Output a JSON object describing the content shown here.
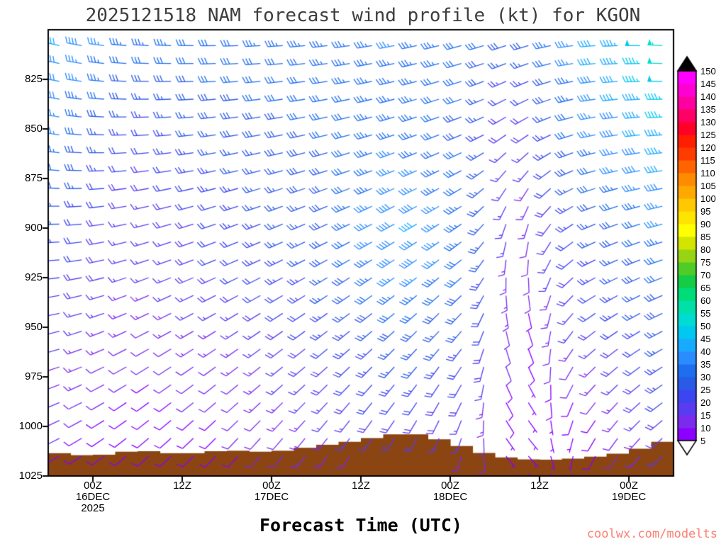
{
  "page": {
    "background": "#ffffff",
    "title_color": "#3d3d3d",
    "watermark": "coolwx.com/modelts",
    "watermark_color": "#fa8072"
  },
  "chart_data": {
    "type": "wind-barb-time-height",
    "title": "2025121518 NAM forecast wind profile (kt) for KGON",
    "units": "kt",
    "x_axis": {
      "title": "Forecast Time (UTC)",
      "range_hours": [
        0,
        84
      ],
      "time_step_hours": 3,
      "ticks": [
        {
          "hour": 6,
          "label": "00Z",
          "date": "16DEC",
          "year": "2025"
        },
        {
          "hour": 18,
          "label": "12Z"
        },
        {
          "hour": 30,
          "label": "00Z",
          "date": "17DEC"
        },
        {
          "hour": 42,
          "label": "12Z"
        },
        {
          "hour": 54,
          "label": "00Z",
          "date": "18DEC"
        },
        {
          "hour": 66,
          "label": "12Z"
        },
        {
          "hour": 78,
          "label": "00Z",
          "date": "19DEC"
        }
      ]
    },
    "y_axis": {
      "units": "hPa",
      "range": [
        800,
        1025
      ],
      "ticks": [
        825,
        850,
        875,
        900,
        925,
        950,
        975,
        1000,
        1025
      ]
    },
    "colorbar": {
      "values": [
        5,
        10,
        15,
        20,
        25,
        30,
        35,
        40,
        45,
        50,
        55,
        60,
        65,
        70,
        75,
        80,
        85,
        90,
        95,
        100,
        105,
        110,
        115,
        120,
        125,
        130,
        135,
        140,
        145,
        150
      ],
      "colors": [
        "#8b00ff",
        "#7a2bee",
        "#5a3cf0",
        "#3c46f0",
        "#2a5ae8",
        "#1e6ef0",
        "#2a8cff",
        "#18aaff",
        "#00c8f0",
        "#00dcd2",
        "#00e0a8",
        "#00dc78",
        "#14cc46",
        "#50cc28",
        "#96d414",
        "#d2e400",
        "#ffff00",
        "#ffe400",
        "#ffc800",
        "#ffa800",
        "#ff8c00",
        "#ff6400",
        "#ff3c00",
        "#ff1e00",
        "#ff0028",
        "#ff0064",
        "#ff00a0",
        "#ff00d2",
        "#ff00ff"
      ],
      "over_color": "#000000",
      "under_color": "#ffffff"
    },
    "terrain": {
      "color": "#8B4513",
      "time_hours": [
        0,
        6,
        12,
        18,
        24,
        30,
        36,
        42,
        46,
        50,
        54,
        58,
        62,
        66,
        72,
        78,
        84
      ],
      "surface_pressure_hpa": [
        1013,
        1015,
        1012,
        1014,
        1012,
        1013,
        1010,
        1007,
        1004,
        1004,
        1008,
        1013,
        1016,
        1017,
        1016,
        1013,
        1006
      ]
    },
    "wind_field": {
      "time_keypoints_hours": [
        0,
        12,
        24,
        36,
        48,
        57,
        63,
        72,
        84
      ],
      "pressure_keypoints_hpa": [
        800,
        850,
        875,
        900,
        925,
        950,
        975,
        1000,
        1025
      ],
      "speed_kt": [
        [
          42,
          35,
          33,
          34,
          36,
          32,
          30,
          40,
          56
        ],
        [
          38,
          22,
          28,
          30,
          34,
          28,
          15,
          35,
          46
        ],
        [
          32,
          18,
          25,
          28,
          38,
          30,
          12,
          30,
          42
        ],
        [
          26,
          15,
          22,
          28,
          42,
          33,
          10,
          25,
          36
        ],
        [
          22,
          15,
          20,
          25,
          38,
          30,
          8,
          22,
          32
        ],
        [
          18,
          12,
          15,
          22,
          30,
          25,
          8,
          18,
          28
        ],
        [
          15,
          10,
          12,
          18,
          25,
          20,
          7,
          12,
          25
        ],
        [
          12,
          8,
          10,
          15,
          20,
          15,
          5,
          8,
          20
        ],
        [
          8,
          7,
          8,
          12,
          15,
          12,
          5,
          7,
          15
        ]
      ],
      "dir_deg": [
        [
          285,
          275,
          270,
          265,
          260,
          255,
          255,
          265,
          275
        ],
        [
          280,
          268,
          262,
          258,
          252,
          248,
          235,
          258,
          268
        ],
        [
          275,
          262,
          256,
          252,
          246,
          240,
          210,
          252,
          262
        ],
        [
          270,
          256,
          250,
          246,
          240,
          234,
          185,
          246,
          256
        ],
        [
          265,
          250,
          245,
          240,
          234,
          228,
          165,
          240,
          250
        ],
        [
          258,
          244,
          238,
          234,
          228,
          220,
          150,
          232,
          244
        ],
        [
          252,
          238,
          232,
          228,
          220,
          210,
          140,
          222,
          238
        ],
        [
          246,
          232,
          226,
          220,
          212,
          198,
          130,
          210,
          232
        ],
        [
          240,
          226,
          220,
          214,
          204,
          188,
          120,
          200,
          226
        ]
      ]
    }
  }
}
